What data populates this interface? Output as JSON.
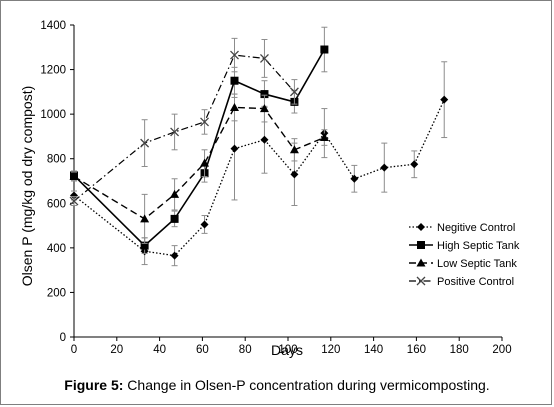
{
  "caption": {
    "label": "Figure 5:",
    "text": " Change in Olsen-P concentration during vermicomposting."
  },
  "chart_data": {
    "type": "line",
    "xlabel": "Days",
    "ylabel": "Olsen P (mg/kg od dry compost)",
    "xlim": [
      0,
      200
    ],
    "ylim": [
      0,
      1400
    ],
    "xticks": [
      0,
      20,
      40,
      60,
      80,
      100,
      120,
      140,
      160,
      180,
      200
    ],
    "yticks": [
      0,
      200,
      400,
      600,
      800,
      1000,
      1200,
      1400
    ],
    "grid": false,
    "legend_position": "bottom-right",
    "series": [
      {
        "name": "Negitive Control",
        "marker": "diamond",
        "line_style": "dotted",
        "x": [
          0,
          33,
          47,
          61,
          75,
          89,
          103,
          117,
          131,
          145,
          159,
          173
        ],
        "y": [
          635,
          385,
          365,
          505,
          845,
          885,
          730,
          915,
          710,
          760,
          775,
          1065
        ],
        "error": [
          20,
          60,
          45,
          40,
          230,
          150,
          140,
          110,
          60,
          110,
          60,
          170
        ]
      },
      {
        "name": "High Septic Tank",
        "marker": "square",
        "line_style": "solid",
        "x": [
          0,
          33,
          47,
          61,
          75,
          89,
          103,
          117
        ],
        "y": [
          725,
          410,
          530,
          735,
          1150,
          1090,
          1055,
          1290
        ],
        "error": [
          20,
          35,
          35,
          40,
          60,
          60,
          50,
          100
        ]
      },
      {
        "name": "Low Septic Tank",
        "marker": "triangle",
        "line_style": "dashed",
        "x": [
          0,
          33,
          47,
          61,
          75,
          89,
          103,
          117
        ],
        "y": [
          720,
          530,
          640,
          780,
          1030,
          1025,
          840,
          895
        ],
        "error": [
          20,
          110,
          70,
          60,
          60,
          60,
          50,
          35
        ]
      },
      {
        "name": "Positive Control",
        "marker": "x",
        "line_style": "dash-dot",
        "x": [
          0,
          33,
          47,
          61,
          75,
          89,
          103
        ],
        "y": [
          610,
          870,
          920,
          965,
          1265,
          1250,
          1100
        ],
        "error": [
          20,
          105,
          80,
          55,
          75,
          85,
          55
        ]
      }
    ]
  }
}
